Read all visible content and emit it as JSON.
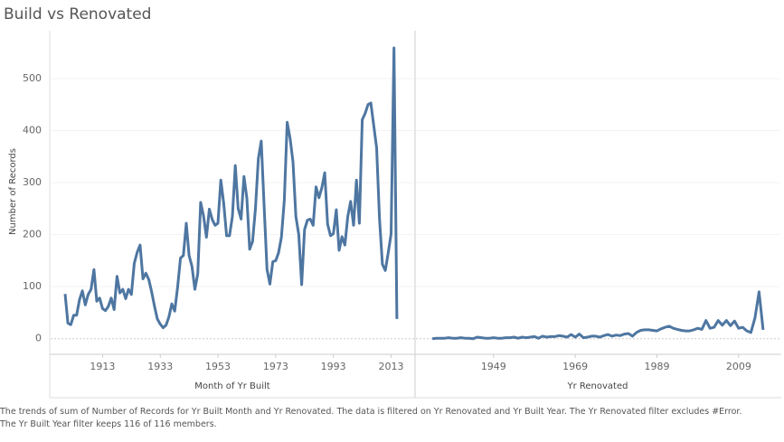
{
  "chart_data": [
    {
      "type": "line",
      "title": "Build vs Renovated",
      "y_label": "Number of Records",
      "x_label": "Month of Yr Built",
      "color": "#4e76a1",
      "x": [
        1900,
        1901,
        1902,
        1903,
        1904,
        1905,
        1906,
        1907,
        1908,
        1909,
        1910,
        1911,
        1912,
        1913,
        1914,
        1915,
        1916,
        1917,
        1918,
        1919,
        1920,
        1921,
        1922,
        1923,
        1924,
        1925,
        1926,
        1927,
        1928,
        1929,
        1930,
        1931,
        1932,
        1933,
        1934,
        1935,
        1936,
        1937,
        1938,
        1939,
        1940,
        1941,
        1942,
        1943,
        1944,
        1945,
        1946,
        1947,
        1948,
        1949,
        1950,
        1951,
        1952,
        1953,
        1954,
        1955,
        1956,
        1957,
        1958,
        1959,
        1960,
        1961,
        1962,
        1963,
        1964,
        1965,
        1966,
        1967,
        1968,
        1969,
        1970,
        1971,
        1972,
        1973,
        1974,
        1975,
        1976,
        1977,
        1978,
        1979,
        1980,
        1981,
        1982,
        1983,
        1984,
        1985,
        1986,
        1987,
        1988,
        1989,
        1990,
        1991,
        1992,
        1993,
        1994,
        1995,
        1996,
        1997,
        1998,
        1999,
        2000,
        2001,
        2002,
        2003,
        2004,
        2005,
        2006,
        2007,
        2008,
        2009,
        2010,
        2011,
        2012,
        2013,
        2014,
        2015
      ],
      "values": [
        86,
        30,
        27,
        45,
        45,
        75,
        92,
        65,
        85,
        95,
        133,
        72,
        78,
        58,
        54,
        62,
        78,
        56,
        120,
        88,
        95,
        77,
        95,
        85,
        145,
        166,
        180,
        115,
        126,
        114,
        90,
        62,
        38,
        28,
        21,
        26,
        42,
        67,
        53,
        99,
        155,
        160,
        222,
        160,
        139,
        95,
        125,
        262,
        236,
        195,
        249,
        229,
        218,
        222,
        305,
        260,
        198,
        198,
        235,
        333,
        250,
        230,
        312,
        270,
        172,
        187,
        250,
        346,
        380,
        254,
        133,
        105,
        148,
        150,
        165,
        195,
        266,
        416,
        385,
        340,
        235,
        200,
        104,
        210,
        228,
        230,
        218,
        292,
        271,
        290,
        319,
        220,
        198,
        202,
        248,
        170,
        196,
        180,
        235,
        264,
        218,
        305,
        222,
        421,
        433,
        450,
        453,
        410,
        367,
        230,
        143,
        131,
        165,
        201,
        559,
        38
      ],
      "xlim": [
        1895,
        2021
      ],
      "xticks": [
        1913,
        1933,
        1953,
        1973,
        1993,
        2013
      ],
      "ylim": [
        -30,
        592
      ],
      "yticks": [
        0,
        100,
        200,
        300,
        400,
        500
      ]
    },
    {
      "type": "line",
      "x_label": "Yr Renovated",
      "color": "#4e76a1",
      "x": [
        1934,
        1935,
        1936,
        1937,
        1938,
        1939,
        1940,
        1941,
        1942,
        1943,
        1944,
        1945,
        1946,
        1947,
        1948,
        1949,
        1950,
        1951,
        1952,
        1953,
        1954,
        1955,
        1956,
        1957,
        1958,
        1959,
        1960,
        1961,
        1962,
        1963,
        1964,
        1965,
        1966,
        1967,
        1968,
        1969,
        1970,
        1971,
        1972,
        1973,
        1974,
        1975,
        1976,
        1977,
        1978,
        1979,
        1980,
        1981,
        1982,
        1983,
        1984,
        1985,
        1986,
        1987,
        1988,
        1989,
        1990,
        1991,
        1992,
        1993,
        1994,
        1995,
        1996,
        1997,
        1998,
        1999,
        2000,
        2001,
        2002,
        2003,
        2004,
        2005,
        2006,
        2007,
        2008,
        2009,
        2010,
        2011,
        2012,
        2013,
        2014,
        2015
      ],
      "values": [
        0,
        1,
        1,
        1,
        2,
        1,
        1,
        2,
        1,
        1,
        0,
        3,
        2,
        1,
        1,
        2,
        1,
        1,
        2,
        2,
        3,
        1,
        3,
        2,
        3,
        4,
        1,
        5,
        3,
        4,
        4,
        6,
        5,
        3,
        8,
        3,
        9,
        2,
        3,
        5,
        5,
        3,
        6,
        8,
        5,
        7,
        6,
        9,
        10,
        5,
        12,
        16,
        17,
        17,
        16,
        15,
        19,
        22,
        24,
        20,
        18,
        16,
        15,
        15,
        17,
        20,
        18,
        35,
        20,
        22,
        35,
        26,
        35,
        25,
        34,
        20,
        22,
        15,
        12,
        40,
        90,
        17
      ],
      "xlim": [
        1930,
        2019
      ],
      "xticks": [
        1949,
        1969,
        1989,
        2009
      ],
      "ylim": [
        -30,
        592
      ],
      "yticks": [
        0,
        100,
        200,
        300,
        400,
        500
      ]
    }
  ],
  "caption": [
    "The trends of sum of Number of Records for Yr Built Month and Yr Renovated. The data is filtered on Yr Renovated and Yr Built Year. The Yr Renovated filter excludes #Error.",
    "The Yr Built Year filter keeps 116 of 116 members."
  ]
}
